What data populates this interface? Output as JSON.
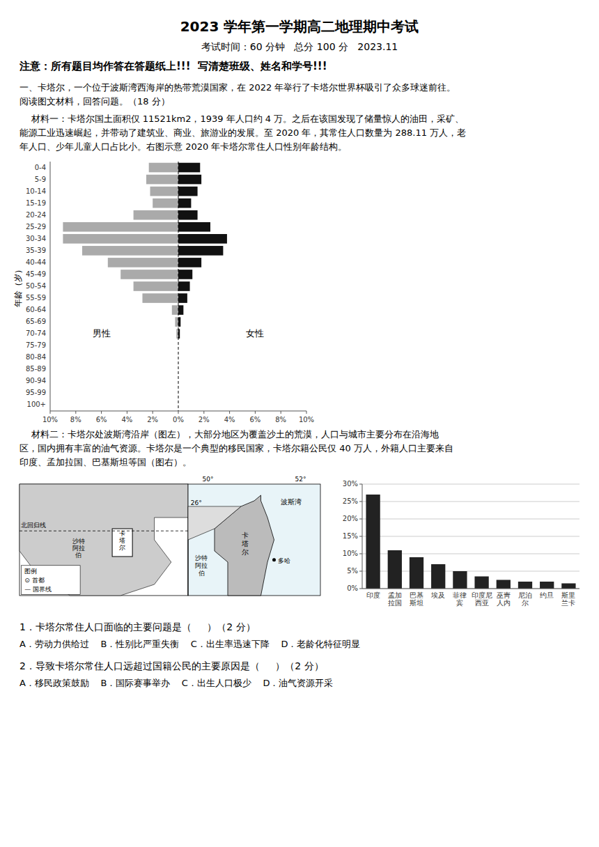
{
  "title": "2023 学年第一学期高二地理期中考试",
  "subtitle": "考试时间：60 分钟   总分 100 分   2023.11",
  "notice": "注意：所有题目均作答在答题纸上!!!  写清楚班级、姓名和学号!!!",
  "paragraphs": [
    "一、卡塔尔，一个位于波斯湾西海岸的热带荒漠国家，在 2022 年举行了卡塔尔世界杯吸引了众多球迷前往。",
    "阅读图文材料，回答问题。（18 分）",
    "    材料一：卡塔尔国土面积仅 11521km2，1939 年人口约 4 万。之后在该国发现了储量惊人的油田，采矿、",
    "能源工业迅速崛起，并带动了建筑业、商业、旅游业的发展。至 2020 年，其常住人口数量为 288.11 万人，老",
    "年人口、少年儿童人口占比小。右图示意 2020 年卡塔尔常住人口性别年龄结构。"
  ],
  "paragraphs2": [
    "    材料二：卡塔尔处波斯湾沿岸（图左），大部分地区为覆盖沙土的荒漠，人口与城市主要分布在沿海地",
    "区，国内拥有丰富的油气资源。卡塔尔是一个典型的移民国家，卡塔尔籍公民仅 40 万人，外籍人口主要来自",
    "印度、孟加拉国、巴基斯坦等国（图右）。"
  ],
  "maps": [
    {
      "labels": [
        "北回归线",
        "卡\n塔\n尔",
        "沙特\n阿拉\n伯",
        "图例",
        "⊙ 首都",
        "— 国界线"
      ]
    },
    {
      "labels": [
        "波斯湾",
        "卡\n塔\n尔",
        "沙特\n阿拉\n伯",
        "多哈",
        "50°",
        "52°",
        "26°"
      ]
    }
  ],
  "questions": [
    "1．卡塔尔常住人口面临的主要问题是（     ）（2 分）",
    "A．劳动力供给过    B．性别比严重失衡    C．出生率迅速下降    D．老龄化特征明显",
    "2．导致卡塔尔常住人口远超过国籍公民的主要原因是（     ）（2 分）",
    "A．移民政策鼓励    B．国际赛事举办    C．出生人口极少    D．油气资源开采"
  ],
  "chart_data": [
    {
      "type": "pyramid",
      "orientation": "horizontal",
      "categories": [
        "100+",
        "95-99",
        "90-94",
        "85-89",
        "80-84",
        "75-79",
        "70-74",
        "65-69",
        "60-64",
        "55-59",
        "50-54",
        "45-49",
        "40-44",
        "35-39",
        "30-34",
        "25-29",
        "20-24",
        "15-19",
        "10-14",
        "5-9",
        "0-4"
      ],
      "series": [
        {
          "name": "男性",
          "color": "#aaaaaa",
          "values": [
            0.0,
            0.0,
            0.0,
            0.0,
            0.0,
            0.0,
            0.15,
            0.25,
            0.5,
            2.8,
            3.5,
            4.5,
            5.5,
            7.5,
            9.0,
            9.0,
            3.5,
            2.0,
            2.2,
            2.5,
            2.3
          ]
        },
        {
          "name": "女性",
          "color": "#111111",
          "values": [
            0.0,
            0.0,
            0.0,
            0.0,
            0.0,
            0.0,
            0.12,
            0.18,
            0.4,
            0.7,
            0.9,
            1.1,
            1.8,
            3.5,
            3.8,
            2.5,
            1.5,
            1.0,
            1.5,
            1.8,
            1.7
          ]
        }
      ],
      "ylabel": "年龄（岁）",
      "xlim": [
        0,
        10
      ],
      "xticks": [
        {
          "value": 0,
          "label": "0%"
        },
        {
          "value": 2,
          "label": "2%"
        },
        {
          "value": 4,
          "label": "4%"
        },
        {
          "value": 6,
          "label": "6%"
        },
        {
          "value": 8,
          "label": "8%"
        },
        {
          "value": 10,
          "label": "10%"
        }
      ],
      "grid": false
    },
    {
      "type": "bar",
      "categories": [
        "印度",
        "孟加\n拉国",
        "巴基\n斯坦",
        "埃及",
        "菲律\n宾",
        "印度尼\n西亚",
        "巫靑\n人内",
        "尼泊\n尔",
        "约旦",
        "斯里\n兰卡"
      ],
      "values": [
        27.0,
        11.0,
        9.0,
        7.0,
        5.0,
        3.5,
        2.5,
        2.0,
        2.0,
        1.5
      ],
      "color": "#222222",
      "ylim": [
        0,
        30
      ],
      "yticks": [
        {
          "value": 0,
          "label": "0%"
        },
        {
          "value": 5,
          "label": "5%"
        },
        {
          "value": 10,
          "label": "10%"
        },
        {
          "value": 15,
          "label": "15%"
        },
        {
          "value": 20,
          "label": "20%"
        },
        {
          "value": 25,
          "label": "25%"
        },
        {
          "value": 30,
          "label": "30%"
        }
      ],
      "grid": true
    }
  ]
}
